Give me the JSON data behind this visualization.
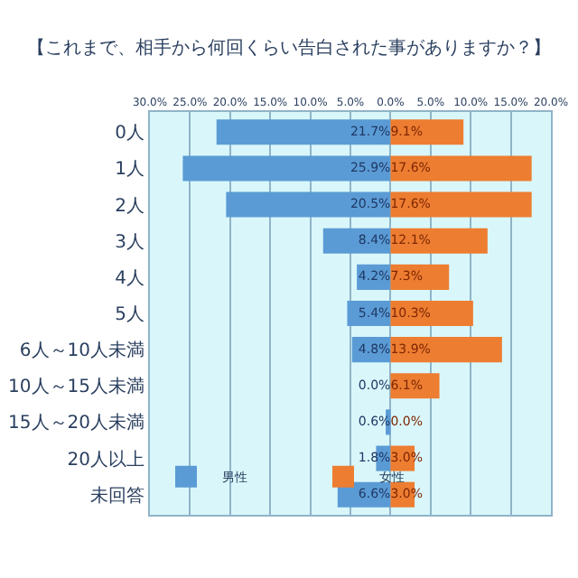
{
  "chart_data": {
    "type": "bar",
    "orientation": "horizontal",
    "title": "【これまで、相手から何回くらい告白された事がありますか？】",
    "categories": [
      "0人",
      "1人",
      "2人",
      "3人",
      "4人",
      "5人",
      "6人～10人未満",
      "10人～15人未満",
      "15人～20人未満",
      "20人以上",
      "未回答"
    ],
    "series": [
      {
        "name": "男性",
        "color": "#5b9bd5",
        "values": [
          21.7,
          25.9,
          20.5,
          8.4,
          4.2,
          5.4,
          4.8,
          0.0,
          0.6,
          1.8,
          6.6
        ],
        "base": [
          -21.7,
          -25.9,
          -20.5,
          -8.4,
          -4.2,
          -5.4,
          -4.8,
          null,
          -0.6,
          -1.8,
          -6.6
        ],
        "value_labels": [
          "21.7%",
          "25.9%",
          "20.5%",
          "8.4%",
          "4.2%",
          "5.4%",
          "4.8%",
          "0.0%",
          "0.6%",
          "1.8%",
          "6.6%"
        ]
      },
      {
        "name": "女性",
        "color": "#ed7d31",
        "values": [
          9.1,
          17.6,
          17.6,
          12.1,
          7.3,
          10.3,
          13.9,
          6.1,
          0.0,
          3.0,
          3.0
        ],
        "value_labels": [
          "9.1%",
          "17.6%",
          "17.6%",
          "12.1%",
          "7.3%",
          "10.3%",
          "13.9%",
          "6.1%",
          "0.0%",
          "3.0%",
          "3.0%"
        ]
      }
    ],
    "xlim": [
      -30,
      20
    ],
    "xticks": [
      {
        "value": -30,
        "label": "30.0%"
      },
      {
        "value": -25,
        "label": "25.0%"
      },
      {
        "value": -20,
        "label": "20.0%"
      },
      {
        "value": -15,
        "label": "15.0%"
      },
      {
        "value": -10,
        "label": "10.0%"
      },
      {
        "value": -5,
        "label": "5.0%"
      },
      {
        "value": 0,
        "label": "0.0%"
      },
      {
        "value": 5,
        "label": "5.0%"
      },
      {
        "value": 10,
        "label": "10.0%"
      },
      {
        "value": 15,
        "label": "15.0%"
      },
      {
        "value": 20,
        "label": "20.0%"
      }
    ],
    "grid": "x",
    "legend": "bottom left"
  }
}
